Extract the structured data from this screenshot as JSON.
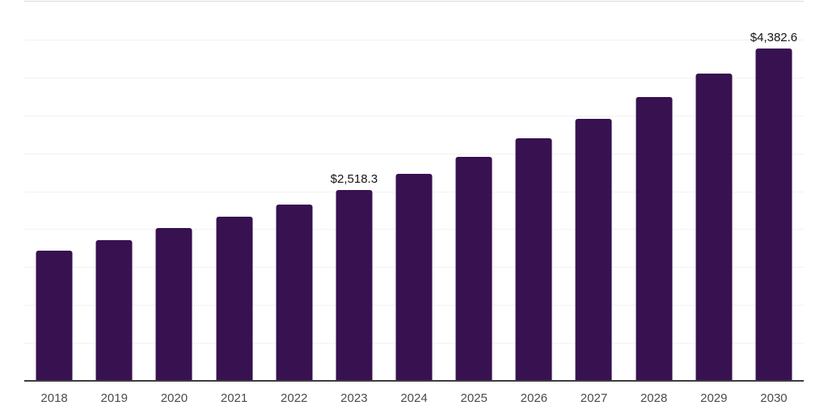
{
  "chart_data": {
    "type": "bar",
    "title": "",
    "xlabel": "",
    "ylabel": "",
    "categories": [
      "2018",
      "2019",
      "2020",
      "2021",
      "2022",
      "2023",
      "2024",
      "2025",
      "2026",
      "2027",
      "2028",
      "2029",
      "2030"
    ],
    "values": [
      1715,
      1860,
      2020,
      2170,
      2325,
      2518.3,
      2725,
      2950,
      3195,
      3455,
      3740,
      4050,
      4382.6
    ],
    "annotations": [
      {
        "category": "2023",
        "text": "$2,518.3",
        "value": 2518.3
      },
      {
        "category": "2030",
        "text": "$4,382.6",
        "value": 4382.6
      }
    ],
    "ylim": [
      0,
      5000
    ],
    "gridline_step": 500,
    "grid": true,
    "legend": "none",
    "colors": {
      "bar": "#371150",
      "axis_line": "#3d3d3d",
      "gridline": "#f2f2f2",
      "plot_top_line": "#dcdcdc",
      "x_tick_label": "#4b4b4b",
      "value_label": "#161616",
      "background": "#ffffff"
    }
  }
}
